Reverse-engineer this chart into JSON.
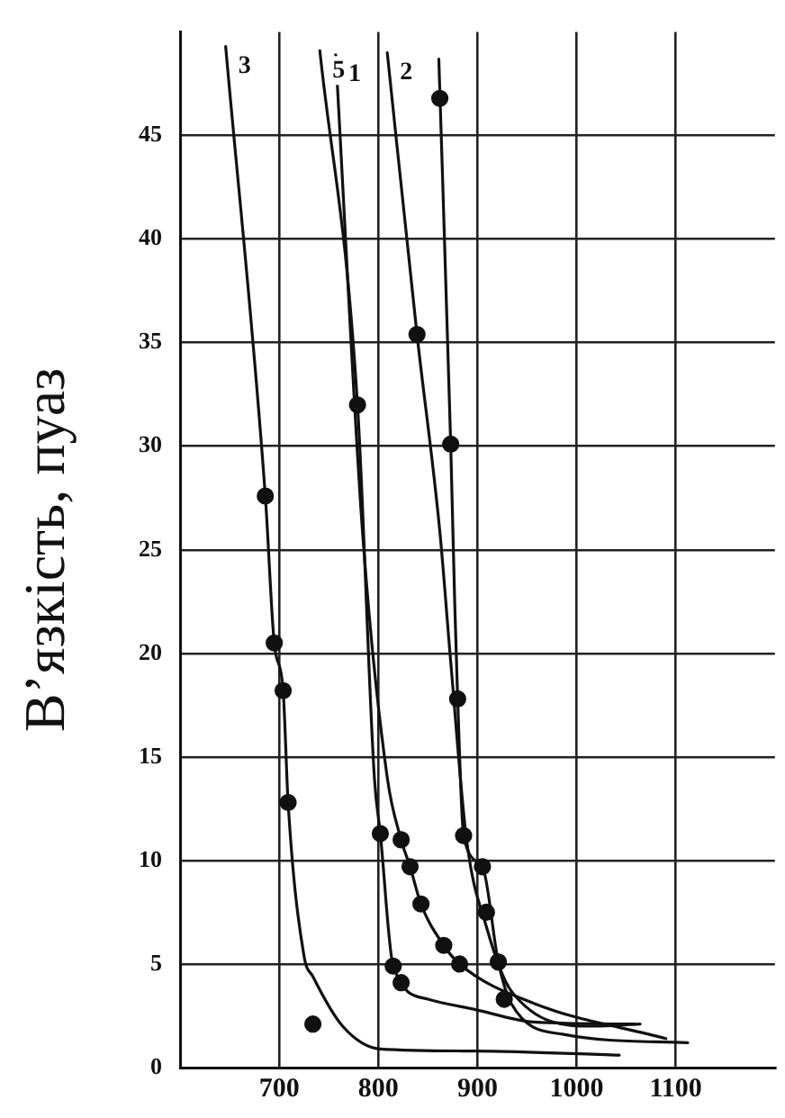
{
  "chart_data": {
    "type": "line",
    "ylabel": "В’язкість, пуаз",
    "xlim": [
      600,
      1200
    ],
    "xticks": [
      700,
      800,
      900,
      1000,
      1100
    ],
    "ylim": [
      0,
      50
    ],
    "yticks": [
      0,
      5,
      10,
      15,
      20,
      25,
      30,
      35,
      40,
      45
    ],
    "grid": true,
    "legend": false,
    "line_style": "solid",
    "series": [
      {
        "name": "3",
        "marker": "none",
        "color": "#111111",
        "x": [
          646,
          686,
          695,
          704,
          709,
          725,
          734,
          764,
          802,
          898,
          1043
        ],
        "values": [
          49.3,
          27.6,
          20.5,
          18.2,
          12.8,
          5.4,
          4.4,
          2.0,
          0.9,
          0.8,
          0.6
        ]
      },
      {
        "name": "5",
        "marker": "none",
        "color": "#111111",
        "x": [
          741,
          779,
          796,
          802,
          815,
          850,
          898,
          957,
          1059
        ],
        "values": [
          49.1,
          32.0,
          14.0,
          11.3,
          4.9,
          3.3,
          2.8,
          2.2,
          2.1
        ]
      },
      {
        "name": "1",
        "marker": "none",
        "color": "#111111",
        "x": [
          757,
          784,
          809,
          823,
          832,
          843,
          866,
          882,
          957,
          1090
        ],
        "values": [
          48.9,
          25.9,
          14.0,
          11.0,
          9.7,
          7.9,
          5.9,
          5.0,
          3.1,
          1.4
        ]
      },
      {
        "name": "2",
        "marker": "none",
        "color": "#111111",
        "x": [
          809,
          839,
          862,
          873,
          889,
          909,
          934,
          1016,
          1064
        ],
        "values": [
          49.0,
          35.4,
          25.9,
          19.6,
          11.0,
          6.8,
          3.7,
          2.0,
          2.1
        ]
      },
      {
        "marker": "none",
        "color": "#111111",
        "x": [
          861,
          873,
          877,
          880,
          886,
          905,
          921,
          934,
          987,
          1112
        ],
        "values": [
          48.7,
          30.1,
          22.5,
          17.8,
          11.2,
          9.7,
          5.1,
          3.1,
          1.6,
          1.2
        ]
      },
      {
        "type": "scatter",
        "marker": "circle",
        "color": "#111111",
        "x": [
          862,
          839,
          779,
          873,
          686,
          695,
          704,
          880,
          709,
          802,
          823,
          886,
          832,
          905,
          843,
          909,
          866,
          882,
          921,
          927,
          734,
          815,
          823
        ],
        "values": [
          46.8,
          35.4,
          32.0,
          30.1,
          27.6,
          20.5,
          18.2,
          17.8,
          12.8,
          11.3,
          11.0,
          11.2,
          9.7,
          9.7,
          7.9,
          7.5,
          5.9,
          5.0,
          5.1,
          3.3,
          2.1,
          4.9,
          4.1
        ]
      }
    ]
  }
}
